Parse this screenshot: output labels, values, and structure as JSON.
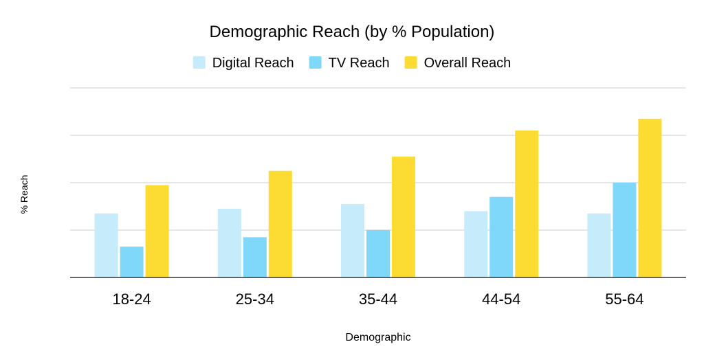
{
  "chart_data": {
    "type": "bar",
    "title": "Demographic Reach (by % Population)",
    "xlabel": "Demographic",
    "ylabel": "% Reach",
    "categories": [
      "18-24",
      "25-34",
      "35-44",
      "44-54",
      "55-64"
    ],
    "series": [
      {
        "name": "Digital Reach",
        "color": "#c6ebfb",
        "values": [
          0.27,
          0.29,
          0.31,
          0.28,
          0.27
        ]
      },
      {
        "name": "TV Reach",
        "color": "#7fd7fa",
        "values": [
          0.13,
          0.17,
          0.2,
          0.34,
          0.4
        ]
      },
      {
        "name": "Overall Reach",
        "color": "#fcdc33",
        "values": [
          0.39,
          0.45,
          0.51,
          0.62,
          0.67
        ]
      }
    ],
    "ylim": [
      0,
      0.8
    ],
    "grid": true,
    "legend_position": "top",
    "axis_color": "#333333",
    "grid_color": "#cccccc"
  }
}
